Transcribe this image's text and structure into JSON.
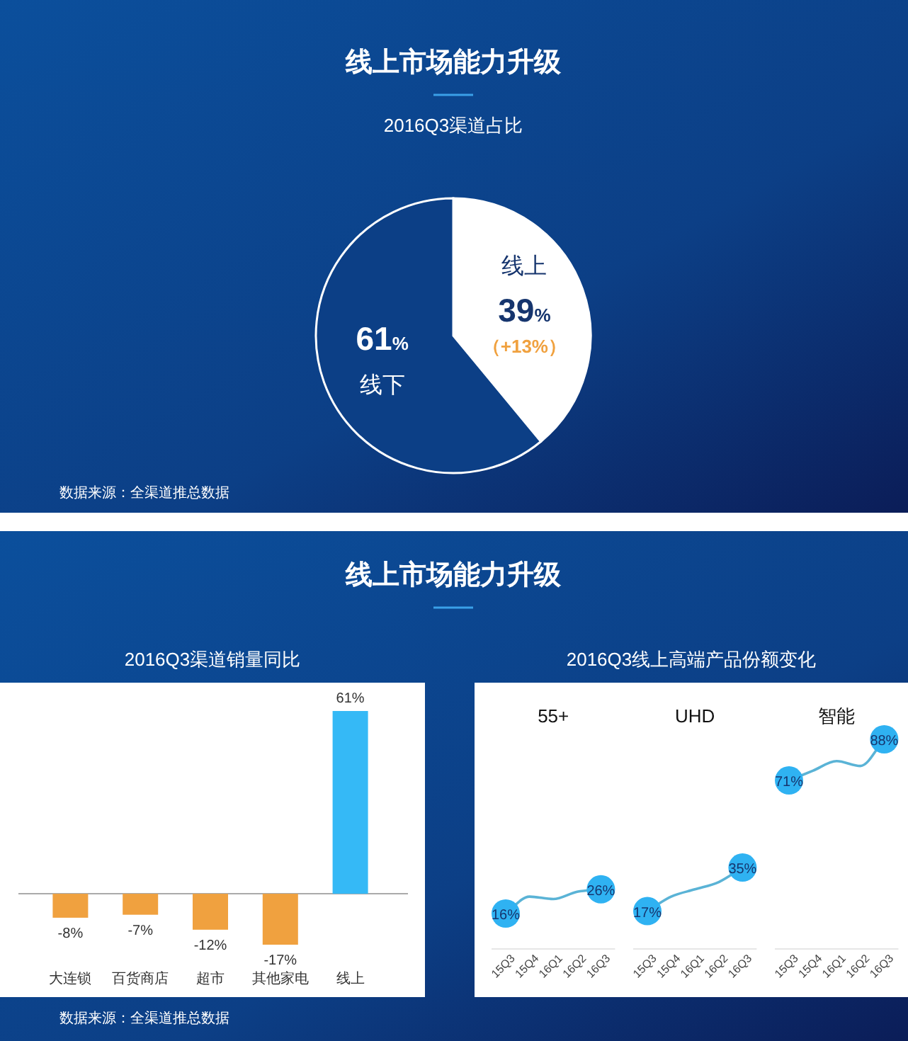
{
  "chart_data": [
    {
      "type": "pie",
      "title": "线上市场能力升级",
      "subtitle": "2016Q3渠道占比",
      "categories": [
        "线上",
        "线下"
      ],
      "values": [
        39,
        61
      ],
      "value_labels": [
        "39%",
        "61%"
      ],
      "colors": [
        "#ffffff",
        "#0c3f86"
      ],
      "annotations": [
        "（+13%）",
        "数据来源：全渠道推总数据"
      ]
    },
    {
      "type": "bar",
      "title": "线上市场能力升级",
      "subtitle": "2016Q3渠道销量同比",
      "categories": [
        "大连锁",
        "百货商店",
        "超市",
        "其他家电",
        "线上"
      ],
      "values": [
        -8,
        -7,
        -12,
        -17,
        61
      ],
      "value_labels": [
        "-8%",
        "-7%",
        "-12%",
        "-17%",
        "61%"
      ],
      "colors": [
        "#f0a13f",
        "#f0a13f",
        "#f0a13f",
        "#f0a13f",
        "#35b9f6"
      ],
      "annotations": [
        "数据来源：全渠道推总数据"
      ]
    },
    {
      "type": "line",
      "subtitle": "2016Q3线上高端产品份额变化",
      "title": "55+",
      "categories": [
        "15Q3",
        "15Q4",
        "16Q1",
        "16Q2",
        "16Q3"
      ],
      "values": [
        16,
        23,
        22,
        25,
        26
      ],
      "value_labels": [
        "16%",
        null,
        null,
        null,
        "26%"
      ],
      "color": "#5ab3d6"
    },
    {
      "type": "line",
      "title": "UHD",
      "categories": [
        "15Q3",
        "15Q4",
        "16Q1",
        "16Q2",
        "16Q3"
      ],
      "values": [
        17,
        23,
        26,
        29,
        35
      ],
      "value_labels": [
        "17%",
        null,
        null,
        null,
        "35%"
      ],
      "color": "#5ab3d6"
    },
    {
      "type": "line",
      "title": "智能",
      "categories": [
        "15Q3",
        "15Q4",
        "16Q1",
        "16Q2",
        "16Q3"
      ],
      "values": [
        71,
        75,
        79,
        77,
        88
      ],
      "value_labels": [
        "71%",
        null,
        null,
        null,
        "88%"
      ],
      "color": "#5ab3d6"
    }
  ]
}
